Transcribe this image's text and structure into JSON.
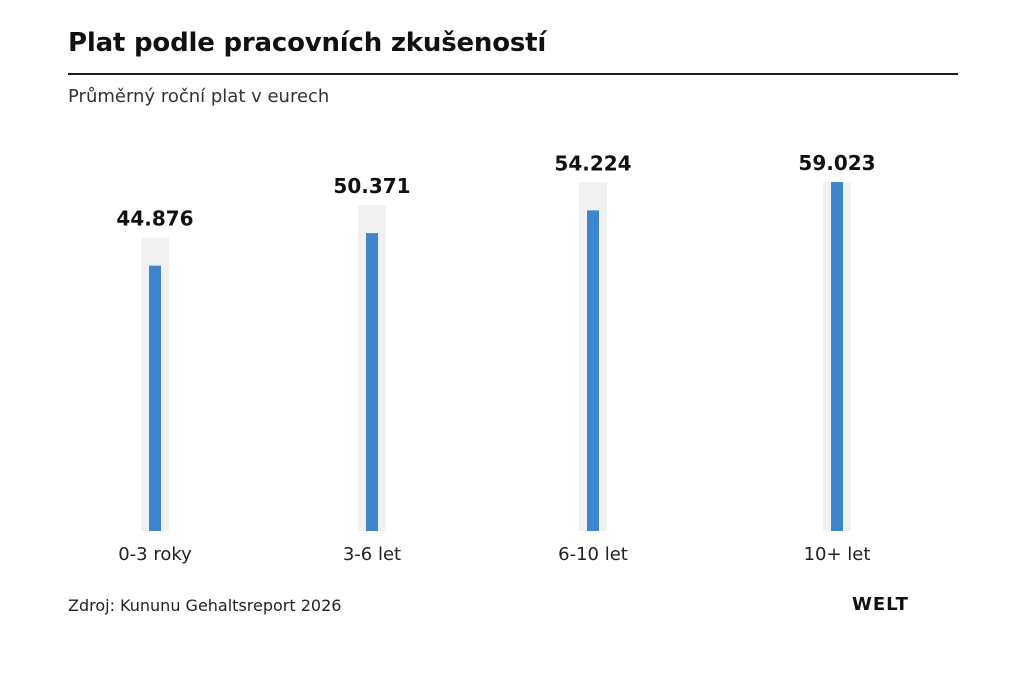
{
  "header": {
    "title": "Plat podle pracovních zkušeností",
    "subtitle": "Průměrný roční plat v eurech"
  },
  "footer": {
    "source": "Zdroj: Kununu Gehaltsreport 2026",
    "logo": "WELT"
  },
  "colors": {
    "bar": "#3d86cc",
    "track": "#f1f1f1",
    "text": "#111111"
  },
  "chart_data": {
    "type": "bar",
    "title": "Plat podle pracovních zkušeností",
    "subtitle": "Průměrný roční plat v eurech",
    "categories": [
      "0-3 roky",
      "3-6 let",
      "6-10 let",
      "10+ let"
    ],
    "values": [
      44876,
      50371,
      54224,
      59023
    ],
    "value_labels": [
      "44.876",
      "50.371",
      "54.224",
      "59.023"
    ],
    "ylim": [
      0,
      59023
    ],
    "xlabel": "",
    "ylabel": "",
    "grid": false
  }
}
